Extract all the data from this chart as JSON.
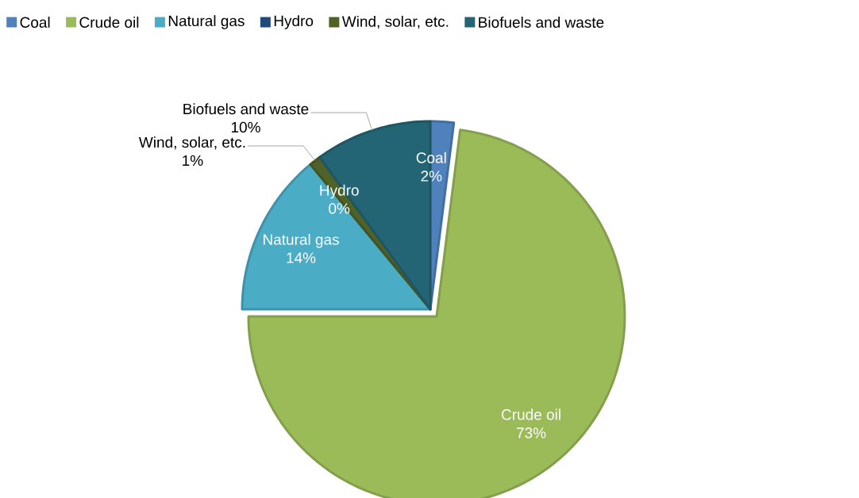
{
  "chart_data": {
    "type": "pie",
    "categories": [
      "Coal",
      "Crude oil",
      "Natural gas",
      "Hydro",
      "Wind, solar, etc.",
      "Biofuels and waste"
    ],
    "values": [
      2,
      73,
      14,
      0,
      1,
      10
    ],
    "value_labels": [
      "2%",
      "73%",
      "14%",
      "0%",
      "1%",
      "10%"
    ],
    "colors": [
      "#4f81bd",
      "#9bbb59",
      "#4bacc6",
      "#1f497d",
      "#4f6228",
      "#236574"
    ],
    "legend": "top"
  }
}
